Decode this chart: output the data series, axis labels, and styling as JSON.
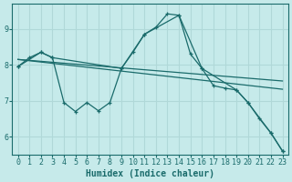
{
  "xlabel": "Humidex (Indice chaleur)",
  "bg_color": "#c6eaea",
  "grid_color": "#b0d8d8",
  "line_color": "#1a6b6b",
  "xlim": [
    -0.5,
    23.5
  ],
  "ylim": [
    5.5,
    9.7
  ],
  "yticks": [
    6,
    7,
    8,
    9
  ],
  "xticks": [
    0,
    1,
    2,
    3,
    4,
    5,
    6,
    7,
    8,
    9,
    10,
    11,
    12,
    13,
    14,
    15,
    16,
    17,
    18,
    19,
    20,
    21,
    22,
    23
  ],
  "series1_x": [
    0,
    1,
    2,
    3,
    4,
    5,
    6,
    7,
    8,
    9,
    10,
    11,
    12,
    13,
    14,
    15,
    16,
    17,
    18,
    19,
    20,
    21,
    22,
    23
  ],
  "series1_y": [
    7.95,
    8.2,
    8.35,
    8.2,
    6.95,
    6.7,
    6.95,
    6.72,
    6.95,
    7.9,
    8.35,
    8.85,
    9.05,
    9.42,
    9.38,
    8.3,
    7.9,
    7.42,
    7.35,
    7.3,
    6.95,
    6.5,
    6.1,
    5.6
  ],
  "series2_x": [
    0,
    2,
    3,
    9,
    11,
    14,
    16,
    19,
    20,
    22,
    23
  ],
  "series2_y": [
    7.95,
    8.35,
    8.2,
    7.9,
    8.85,
    9.38,
    7.9,
    7.3,
    6.95,
    6.1,
    5.6
  ],
  "series3_x": [
    0,
    23
  ],
  "series3_y": [
    8.15,
    7.32
  ],
  "series4_x": [
    0,
    23
  ],
  "series4_y": [
    8.15,
    7.55
  ]
}
